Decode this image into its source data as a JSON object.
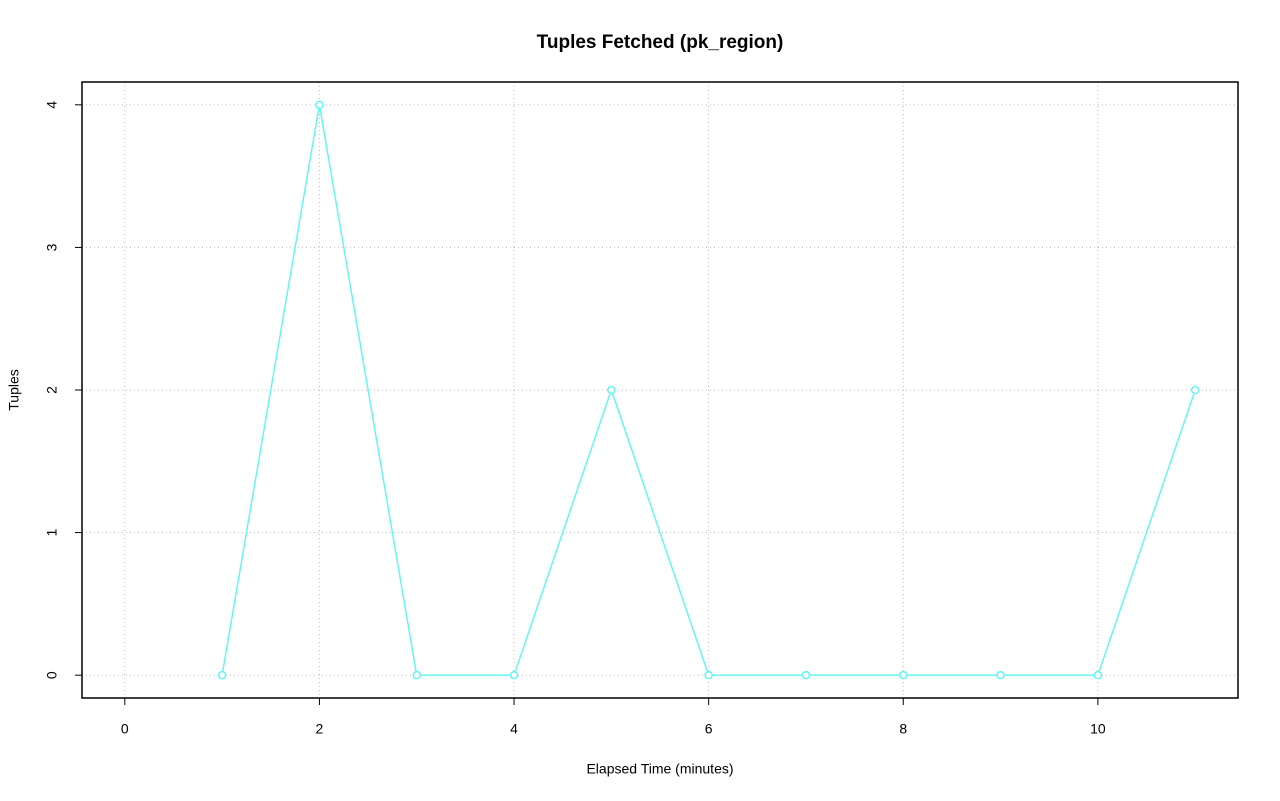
{
  "chart_data": {
    "type": "line",
    "title": "Tuples Fetched (pk_region)",
    "x_label": "Elapsed Time (minutes)",
    "y_label": "Tuples",
    "x": [
      1,
      2,
      3,
      4,
      5,
      6,
      7,
      8,
      9,
      10,
      11
    ],
    "series": [
      {
        "color": "#66f5f5",
        "values": [
          0,
          4,
          0,
          0,
          2,
          0,
          0,
          0,
          0,
          0,
          2
        ]
      }
    ],
    "xlim": [
      -0.44,
      11.44
    ],
    "ylim": [
      -0.16,
      4.16
    ],
    "xticks": [
      0,
      2,
      4,
      6,
      8,
      10
    ],
    "yticks": [
      0,
      1,
      2,
      3,
      4
    ],
    "grid": true
  }
}
